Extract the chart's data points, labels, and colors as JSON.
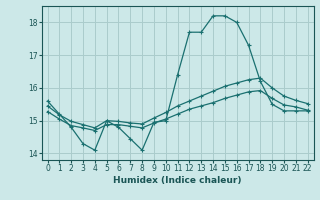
{
  "xlabel": "Humidex (Indice chaleur)",
  "ylabel": "",
  "background_color": "#cce8e8",
  "grid_color": "#aacccc",
  "line_color": "#1a7070",
  "xlim": [
    -0.5,
    22.5
  ],
  "ylim": [
    13.8,
    18.5
  ],
  "yticks": [
    14,
    15,
    16,
    17,
    18
  ],
  "xticks": [
    0,
    1,
    2,
    3,
    4,
    5,
    6,
    7,
    8,
    9,
    10,
    11,
    12,
    13,
    14,
    15,
    16,
    17,
    18,
    19,
    20,
    21,
    22
  ],
  "series1_x": [
    0,
    1,
    2,
    3,
    4,
    5,
    6,
    7,
    8,
    9,
    10,
    11,
    12,
    13,
    14,
    15,
    16,
    17,
    18,
    19,
    20,
    21,
    22
  ],
  "series1_y": [
    15.6,
    15.2,
    14.8,
    14.3,
    14.1,
    15.0,
    14.8,
    14.45,
    14.1,
    14.95,
    15.0,
    16.4,
    17.7,
    17.7,
    18.2,
    18.2,
    18.0,
    17.3,
    16.2,
    15.5,
    15.3,
    15.3,
    15.3
  ],
  "series2_x": [
    0,
    1,
    2,
    3,
    4,
    5,
    6,
    7,
    8,
    9,
    10,
    11,
    12,
    13,
    14,
    15,
    16,
    17,
    18,
    19,
    20,
    21,
    22
  ],
  "series2_y": [
    15.45,
    15.18,
    14.98,
    14.88,
    14.78,
    15.0,
    14.98,
    14.93,
    14.9,
    15.08,
    15.25,
    15.45,
    15.6,
    15.75,
    15.9,
    16.05,
    16.15,
    16.25,
    16.3,
    16.0,
    15.75,
    15.62,
    15.52
  ],
  "series3_x": [
    0,
    1,
    2,
    3,
    4,
    5,
    6,
    7,
    8,
    9,
    10,
    11,
    12,
    13,
    14,
    15,
    16,
    17,
    18,
    19,
    20,
    21,
    22
  ],
  "series3_y": [
    15.28,
    15.05,
    14.85,
    14.78,
    14.7,
    14.88,
    14.88,
    14.83,
    14.78,
    14.93,
    15.05,
    15.2,
    15.35,
    15.45,
    15.55,
    15.68,
    15.78,
    15.88,
    15.92,
    15.68,
    15.48,
    15.42,
    15.32
  ]
}
